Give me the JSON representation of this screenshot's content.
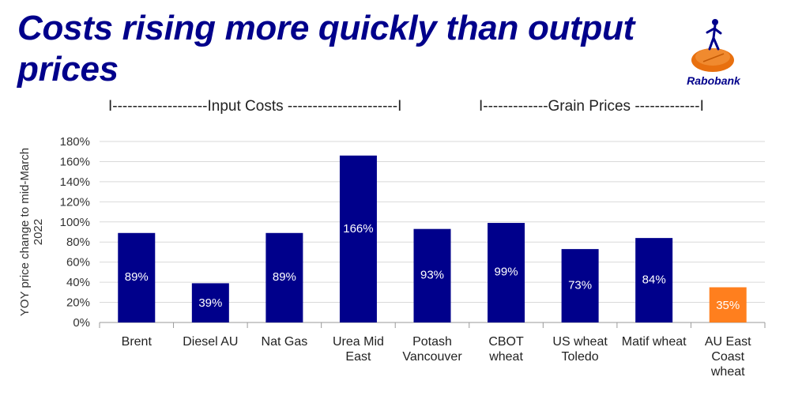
{
  "header": {
    "title": "Costs rising more quickly than output prices"
  },
  "logo": {
    "text": "Rabobank",
    "color": "#e8700f"
  },
  "groups": [
    {
      "label": "I-------------------Input Costs ----------------------I"
    },
    {
      "label": "I-------------Grain Prices -------------I"
    }
  ],
  "chart_data": {
    "type": "bar",
    "title": "Costs rising more quickly than output prices",
    "ylabel": "YOY price change to mid-March 2022",
    "xlabel": "",
    "ylim": [
      0,
      180
    ],
    "yticks": [
      "0%",
      "20%",
      "40%",
      "60%",
      "80%",
      "100%",
      "120%",
      "140%",
      "160%",
      "180%"
    ],
    "grid": true,
    "categories": [
      [
        "Brent"
      ],
      [
        "Diesel AU"
      ],
      [
        "Nat Gas"
      ],
      [
        "Urea Mid",
        "East"
      ],
      [
        "Potash",
        "Vancouver"
      ],
      [
        "CBOT",
        "wheat"
      ],
      [
        "US wheat",
        "Toledo"
      ],
      [
        "Matif wheat"
      ],
      [
        "AU East",
        "Coast",
        "wheat"
      ]
    ],
    "values": [
      89,
      39,
      89,
      166,
      93,
      99,
      73,
      84,
      35
    ],
    "labels": [
      "89%",
      "39%",
      "89%",
      "166%",
      "93%",
      "99%",
      "73%",
      "84%",
      "35%"
    ],
    "colors": [
      "#00008b",
      "#00008b",
      "#00008b",
      "#00008b",
      "#00008b",
      "#00008b",
      "#00008b",
      "#00008b",
      "#ff7f1e"
    ]
  }
}
